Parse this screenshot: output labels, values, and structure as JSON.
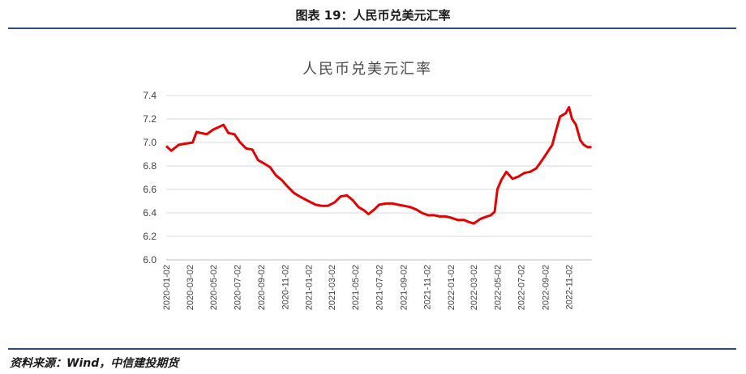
{
  "figure": {
    "caption": "图表 19：人民币兑美元汇率",
    "source": "资料来源：Wind，中信建投期货"
  },
  "colors": {
    "series": "#e60000",
    "grid": "#d9d9d9",
    "rule": "#2f4a78"
  },
  "chart_data": {
    "type": "line",
    "title": "人民币兑美元汇率",
    "xlabel": "",
    "ylabel": "",
    "ylim": [
      6.0,
      7.4
    ],
    "yticks": [
      "6.0",
      "6.2",
      "6.4",
      "6.6",
      "6.8",
      "7.0",
      "7.2",
      "7.4"
    ],
    "xtick_labels": [
      "2020-01-02",
      "2020-03-02",
      "2020-05-02",
      "2020-07-02",
      "2020-09-02",
      "2020-11-02",
      "2021-01-02",
      "2021-03-02",
      "2021-05-02",
      "2021-07-02",
      "2021-09-02",
      "2021-11-02",
      "2022-01-02",
      "2022-03-02",
      "2022-05-02",
      "2022-07-02",
      "2022-09-02",
      "2022-11-02"
    ],
    "grid": true,
    "legend": "none",
    "series": [
      {
        "color": "#e60000",
        "x": [
          "2020-01-02",
          "2020-01-15",
          "2020-02-03",
          "2020-02-20",
          "2020-03-10",
          "2020-03-20",
          "2020-04-01",
          "2020-04-15",
          "2020-05-02",
          "2020-05-15",
          "2020-05-28",
          "2020-06-10",
          "2020-06-25",
          "2020-07-10",
          "2020-07-25",
          "2020-08-10",
          "2020-08-25",
          "2020-09-10",
          "2020-09-25",
          "2020-10-10",
          "2020-10-25",
          "2020-11-10",
          "2020-11-25",
          "2020-12-10",
          "2021-01-02",
          "2021-01-20",
          "2021-02-05",
          "2021-02-20",
          "2021-03-10",
          "2021-03-25",
          "2021-04-10",
          "2021-04-25",
          "2021-05-10",
          "2021-05-25",
          "2021-06-05",
          "2021-06-20",
          "2021-07-02",
          "2021-07-20",
          "2021-08-05",
          "2021-08-20",
          "2021-09-05",
          "2021-09-20",
          "2021-10-05",
          "2021-10-20",
          "2021-11-05",
          "2021-11-20",
          "2021-12-05",
          "2021-12-20",
          "2022-01-02",
          "2022-01-20",
          "2022-02-05",
          "2022-02-20",
          "2022-03-02",
          "2022-03-20",
          "2022-04-05",
          "2022-04-15",
          "2022-04-25",
          "2022-05-02",
          "2022-05-12",
          "2022-05-25",
          "2022-06-10",
          "2022-06-25",
          "2022-07-10",
          "2022-07-25",
          "2022-08-10",
          "2022-08-25",
          "2022-09-10",
          "2022-09-20",
          "2022-09-28",
          "2022-10-10",
          "2022-10-25",
          "2022-11-02",
          "2022-11-10",
          "2022-11-20",
          "2022-12-01",
          "2022-12-10",
          "2022-12-20",
          "2022-12-30"
        ],
        "values": [
          6.97,
          6.93,
          6.98,
          6.99,
          7.0,
          7.09,
          7.08,
          7.07,
          7.11,
          7.13,
          7.15,
          7.08,
          7.07,
          7.0,
          6.95,
          6.94,
          6.85,
          6.82,
          6.79,
          6.72,
          6.68,
          6.62,
          6.57,
          6.54,
          6.5,
          6.47,
          6.46,
          6.46,
          6.49,
          6.54,
          6.55,
          6.51,
          6.45,
          6.42,
          6.39,
          6.43,
          6.47,
          6.48,
          6.48,
          6.47,
          6.46,
          6.45,
          6.43,
          6.4,
          6.38,
          6.38,
          6.37,
          6.37,
          6.36,
          6.34,
          6.34,
          6.32,
          6.31,
          6.35,
          6.37,
          6.38,
          6.41,
          6.6,
          6.68,
          6.75,
          6.69,
          6.71,
          6.74,
          6.75,
          6.78,
          6.85,
          6.93,
          6.98,
          7.08,
          7.22,
          7.25,
          7.3,
          7.2,
          7.15,
          7.02,
          6.98,
          6.96,
          6.96
        ]
      }
    ]
  }
}
